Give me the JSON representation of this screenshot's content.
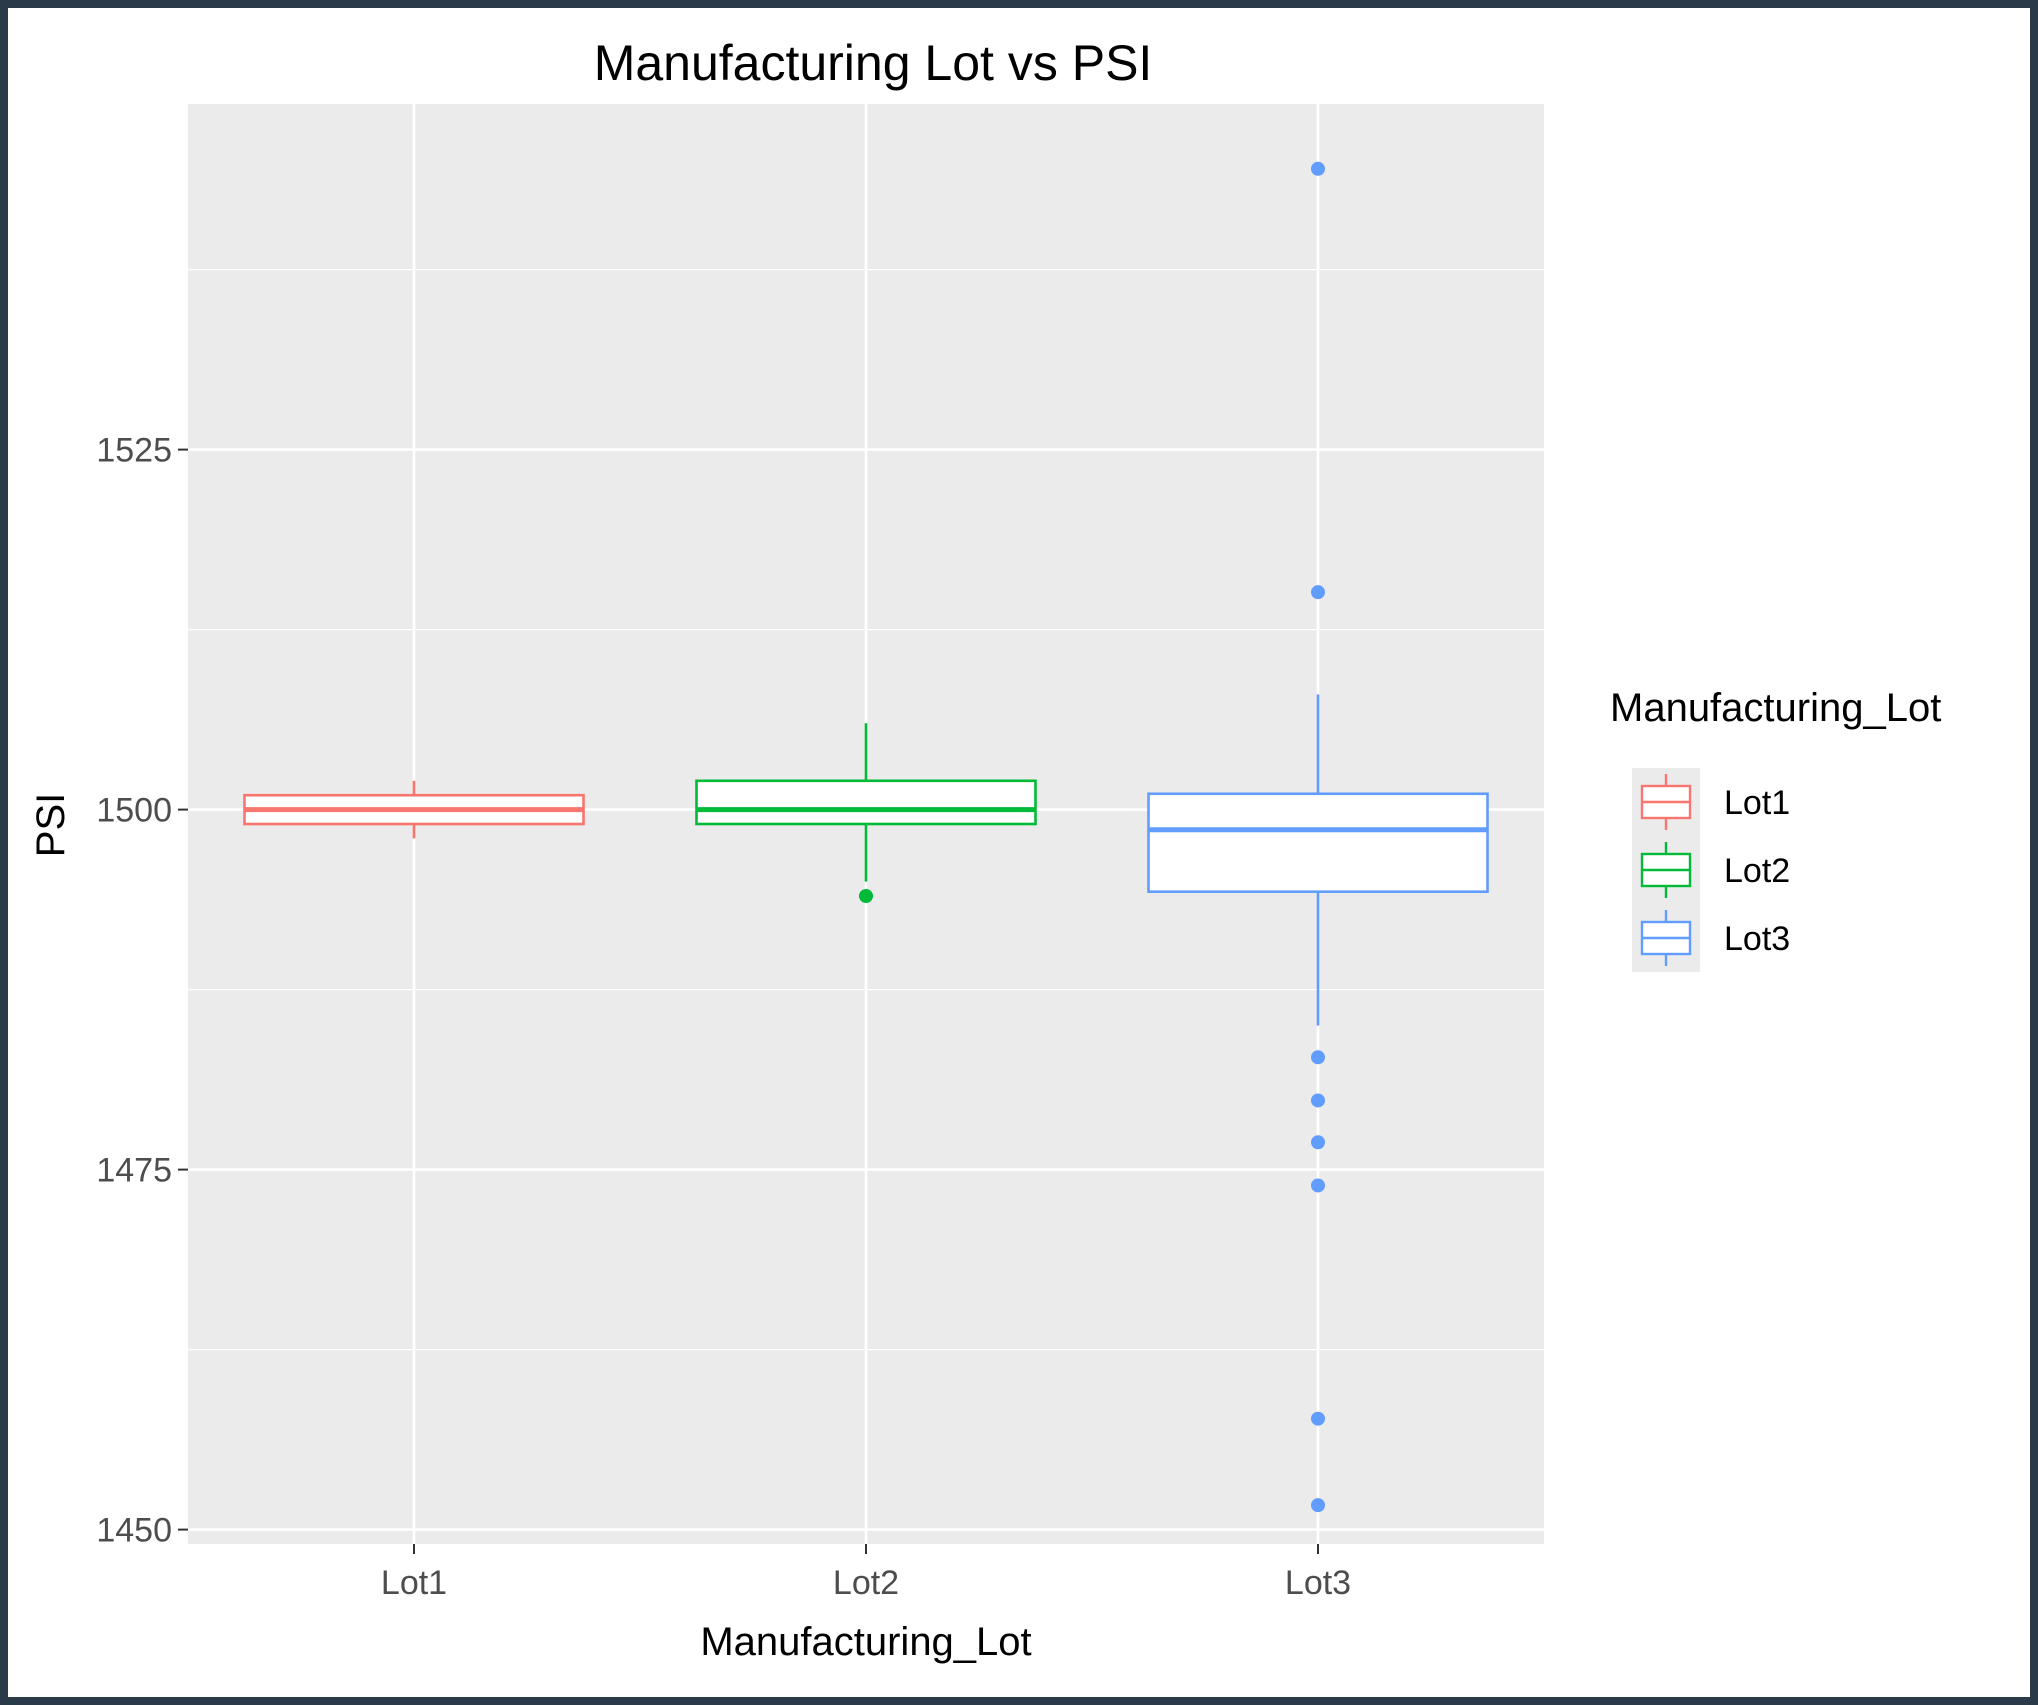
{
  "chart_data": {
    "type": "box",
    "title": "Manufacturing Lot vs PSI",
    "xlabel": "Manufacturing_Lot",
    "ylabel": "PSI",
    "categories": [
      "Lot1",
      "Lot2",
      "Lot3"
    ],
    "ylim": [
      1449,
      1549
    ],
    "y_ticks": [
      1450,
      1475,
      1500,
      1525
    ],
    "grid": true,
    "legend": {
      "title": "Manufacturing_Lot",
      "position": "right"
    },
    "series": [
      {
        "name": "Lot1",
        "color": "#F8766D",
        "whisker_low": 1498,
        "q1": 1499,
        "median": 1500,
        "q3": 1501,
        "whisker_high": 1502,
        "outliers": []
      },
      {
        "name": "Lot2",
        "color": "#00BA38",
        "whisker_low": 1495,
        "q1": 1499,
        "median": 1500,
        "q3": 1502,
        "whisker_high": 1506,
        "outliers": [
          1494
        ]
      },
      {
        "name": "Lot3",
        "color": "#619CFF",
        "whisker_low": 1485,
        "q1": 1494.3,
        "median": 1498.6,
        "q3": 1501.1,
        "whisker_high": 1508,
        "outliers": [
          1544.5,
          1515.1,
          1482.8,
          1479.8,
          1476.9,
          1473.9,
          1457.7,
          1451.7
        ]
      }
    ]
  }
}
